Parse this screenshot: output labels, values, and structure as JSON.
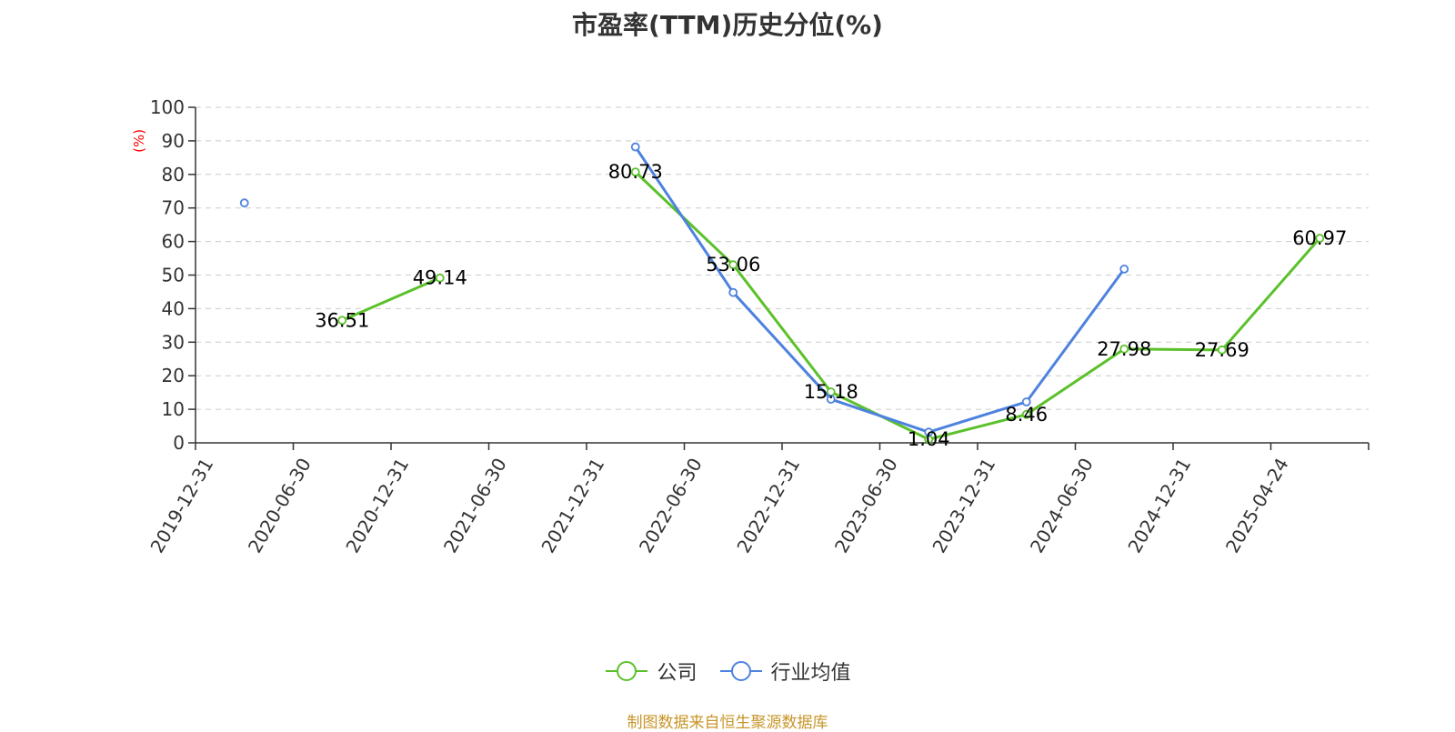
{
  "title": "市盈率(TTM)历史分位(%)",
  "source_note": "制图数据来自恒生聚源数据库",
  "legend": [
    {
      "name": "公司",
      "color": "#5bc12a"
    },
    {
      "name": "行业均值",
      "color": "#4d82de"
    }
  ],
  "chart_data": {
    "type": "line",
    "title": "市盈率(TTM)历史分位(%)",
    "ylabel": "(%)",
    "ylim": [
      0,
      100
    ],
    "yticks": [
      0,
      10,
      20,
      30,
      40,
      50,
      60,
      70,
      80,
      90,
      100
    ],
    "grid": true,
    "legend_position": "bottom",
    "categories": [
      "2019-12-31",
      "2020-06-30",
      "2020-12-31",
      "2021-06-30",
      "2021-12-31",
      "2022-06-30",
      "2022-12-31",
      "2023-06-30",
      "2023-12-31",
      "2024-06-30",
      "2024-12-31",
      "2025-04-24"
    ],
    "series": [
      {
        "name": "公司",
        "color": "#5bc12a",
        "values": [
          null,
          36.51,
          49.14,
          null,
          80.73,
          53.06,
          15.18,
          1.04,
          8.46,
          27.98,
          27.69,
          60.97
        ],
        "labels": [
          "",
          "36.51",
          "49.14",
          "",
          "80.73",
          "53.06",
          "15.18",
          "1.04",
          "8.46",
          "27.98",
          "27.69",
          "60.97"
        ]
      },
      {
        "name": "行业均值",
        "color": "#4d82de",
        "values": [
          71.5,
          null,
          null,
          null,
          88.2,
          44.8,
          13.0,
          3.2,
          12.2,
          51.8,
          null,
          null
        ]
      }
    ]
  }
}
